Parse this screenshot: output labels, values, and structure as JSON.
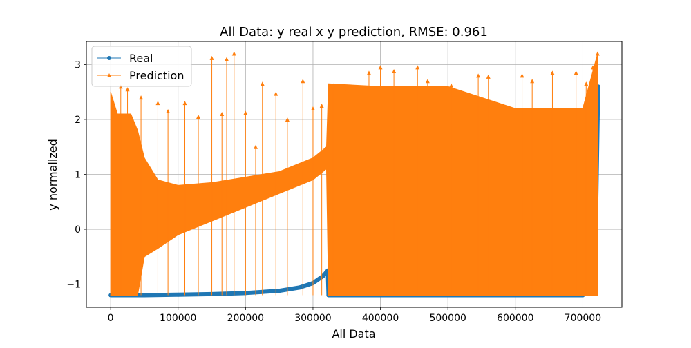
{
  "chart_data": {
    "type": "line",
    "title": "All Data: y real x y prediction, RMSE: 0.961",
    "xlabel": "All Data",
    "ylabel": "y normalized",
    "xlim": [
      -36000,
      758000
    ],
    "ylim": [
      -1.42,
      3.42
    ],
    "x_ticks": [
      0,
      100000,
      200000,
      300000,
      400000,
      500000,
      600000,
      700000
    ],
    "x_tick_labels": [
      "0",
      "100000",
      "200000",
      "300000",
      "400000",
      "500000",
      "600000",
      "700000"
    ],
    "y_ticks": [
      -1,
      0,
      1,
      2,
      3
    ],
    "y_tick_labels": [
      "−1",
      "0",
      "1",
      "2",
      "3"
    ],
    "grid": true,
    "legend_position": "upper-left",
    "series": [
      {
        "name": "Real",
        "color": "#1f77b4",
        "marker": "circle",
        "points": [
          [
            0,
            -1.2
          ],
          [
            50000,
            -1.2
          ],
          [
            100000,
            -1.19
          ],
          [
            150000,
            -1.18
          ],
          [
            200000,
            -1.16
          ],
          [
            250000,
            -1.12
          ],
          [
            280000,
            -1.06
          ],
          [
            300000,
            -0.98
          ],
          [
            315000,
            -0.85
          ],
          [
            322000,
            -0.75
          ],
          [
            323000,
            -1.2
          ],
          [
            400000,
            -1.2
          ],
          [
            500000,
            -1.2
          ],
          [
            600000,
            -1.2
          ],
          [
            700000,
            -1.2
          ],
          [
            715000,
            -1.0
          ],
          [
            720000,
            0.5
          ],
          [
            722000,
            2.0
          ],
          [
            723000,
            2.6
          ]
        ]
      },
      {
        "name": "Prediction",
        "color": "#ff7f0e",
        "marker": "triangle",
        "envelope": [
          [
            0,
            -1.2,
            2.5
          ],
          [
            10000,
            -1.2,
            2.1
          ],
          [
            20000,
            -1.2,
            2.1
          ],
          [
            30000,
            -1.2,
            2.1
          ],
          [
            40000,
            -1.2,
            1.8
          ],
          [
            50000,
            -0.5,
            1.3
          ],
          [
            70000,
            -0.35,
            0.9
          ],
          [
            100000,
            -0.1,
            0.8
          ],
          [
            150000,
            0.15,
            0.85
          ],
          [
            200000,
            0.4,
            0.95
          ],
          [
            250000,
            0.65,
            1.05
          ],
          [
            300000,
            0.9,
            1.3
          ],
          [
            320000,
            1.1,
            1.5
          ],
          [
            323000,
            -1.2,
            2.65
          ],
          [
            400000,
            -1.2,
            2.6
          ],
          [
            500000,
            -1.2,
            2.6
          ],
          [
            600000,
            -1.2,
            2.2
          ],
          [
            700000,
            -1.2,
            2.2
          ],
          [
            722000,
            -1.2,
            3.2
          ]
        ],
        "spikes": [
          [
            15000,
            2.6
          ],
          [
            25000,
            2.55
          ],
          [
            45000,
            2.4
          ],
          [
            70000,
            2.3
          ],
          [
            85000,
            2.15
          ],
          [
            110000,
            2.3
          ],
          [
            130000,
            2.05
          ],
          [
            150000,
            3.12
          ],
          [
            165000,
            2.1
          ],
          [
            172000,
            3.1
          ],
          [
            183000,
            3.2
          ],
          [
            200000,
            2.12
          ],
          [
            215000,
            1.5
          ],
          [
            225000,
            2.65
          ],
          [
            245000,
            2.47
          ],
          [
            262000,
            2.0
          ],
          [
            285000,
            2.7
          ],
          [
            300000,
            2.2
          ],
          [
            313000,
            2.25
          ],
          [
            330000,
            2.62
          ],
          [
            350000,
            2.52
          ],
          [
            383000,
            2.85
          ],
          [
            400000,
            2.95
          ],
          [
            420000,
            2.88
          ],
          [
            455000,
            2.95
          ],
          [
            470000,
            2.7
          ],
          [
            505000,
            2.62
          ],
          [
            545000,
            2.8
          ],
          [
            560000,
            2.78
          ],
          [
            610000,
            2.8
          ],
          [
            625000,
            2.7
          ],
          [
            655000,
            2.85
          ],
          [
            690000,
            2.85
          ],
          [
            705000,
            2.65
          ],
          [
            715000,
            2.95
          ],
          [
            722000,
            3.2
          ]
        ]
      }
    ]
  }
}
